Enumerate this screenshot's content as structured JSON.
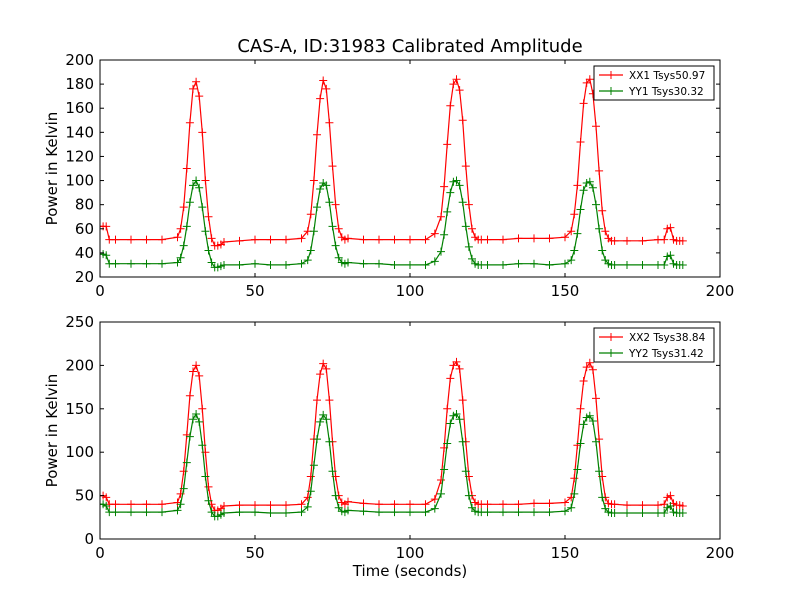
{
  "figure": {
    "title": "CAS-A, ID:31983 Calibrated Amplitude"
  },
  "chart_data": [
    {
      "type": "line",
      "title": "CAS-A, ID:31983 Calibrated Amplitude",
      "xlabel": "",
      "ylabel": "Power in Kelvin",
      "xlim": [
        0,
        200
      ],
      "ylim": [
        20,
        200
      ],
      "xticks": [
        "0",
        "50",
        "100",
        "150",
        "200"
      ],
      "yticks": [
        "20",
        "40",
        "60",
        "80",
        "100",
        "120",
        "140",
        "160",
        "180",
        "200"
      ],
      "legend_position": "top-right",
      "grid": false,
      "series": [
        {
          "name": "XX1 Tsys50.97",
          "color": "#ff0000",
          "marker": "plus",
          "x": [
            0,
            1,
            2,
            3,
            5,
            10,
            15,
            20,
            25,
            26,
            27,
            28,
            29,
            30,
            31,
            32,
            33,
            34,
            35,
            36,
            37,
            38,
            39,
            40,
            45,
            50,
            55,
            60,
            65,
            67,
            68,
            69,
            70,
            71,
            72,
            73,
            74,
            75,
            76,
            77,
            78,
            79,
            80,
            85,
            90,
            95,
            100,
            105,
            108,
            110,
            111,
            112,
            113,
            114,
            115,
            116,
            117,
            118,
            119,
            120,
            121,
            122,
            123,
            125,
            130,
            135,
            140,
            145,
            150,
            152,
            153,
            154,
            155,
            156,
            157,
            158,
            159,
            160,
            161,
            162,
            163,
            164,
            165,
            166,
            170,
            175,
            180,
            182,
            183,
            184,
            185,
            186,
            187,
            188
          ],
          "y": [
            62,
            62,
            62,
            51,
            51,
            51,
            51,
            51,
            53,
            60,
            78,
            110,
            148,
            176,
            182,
            170,
            140,
            100,
            70,
            52,
            46,
            46,
            47,
            49,
            50,
            51,
            51,
            51,
            52,
            58,
            72,
            100,
            138,
            168,
            183,
            176,
            148,
            112,
            80,
            60,
            53,
            51,
            52,
            51,
            51,
            51,
            51,
            51,
            56,
            70,
            95,
            130,
            162,
            180,
            184,
            175,
            150,
            112,
            80,
            60,
            53,
            51,
            51,
            51,
            51,
            52,
            52,
            52,
            53,
            58,
            72,
            96,
            132,
            164,
            181,
            184,
            172,
            145,
            108,
            75,
            58,
            52,
            50,
            50,
            50,
            50,
            51,
            51,
            60,
            61,
            51,
            50,
            50,
            50
          ]
        },
        {
          "name": "YY1 Tsys30.32",
          "color": "#008000",
          "marker": "plus",
          "x": [
            0,
            1,
            2,
            3,
            5,
            10,
            15,
            20,
            25,
            26,
            27,
            28,
            29,
            30,
            31,
            32,
            33,
            34,
            35,
            36,
            37,
            38,
            39,
            40,
            45,
            50,
            55,
            60,
            65,
            67,
            68,
            69,
            70,
            71,
            72,
            73,
            74,
            75,
            76,
            77,
            78,
            79,
            80,
            85,
            90,
            95,
            100,
            105,
            108,
            110,
            111,
            112,
            113,
            114,
            115,
            116,
            117,
            118,
            119,
            120,
            121,
            122,
            123,
            125,
            130,
            135,
            140,
            145,
            150,
            152,
            153,
            154,
            155,
            156,
            157,
            158,
            159,
            160,
            161,
            162,
            163,
            164,
            165,
            166,
            170,
            175,
            180,
            182,
            183,
            184,
            185,
            186,
            187,
            188
          ],
          "y": [
            39,
            39,
            38,
            31,
            31,
            31,
            31,
            31,
            32,
            36,
            46,
            62,
            82,
            96,
            100,
            94,
            78,
            58,
            42,
            32,
            28,
            28,
            29,
            30,
            30,
            31,
            30,
            30,
            31,
            34,
            42,
            58,
            78,
            93,
            98,
            96,
            82,
            62,
            46,
            36,
            32,
            31,
            32,
            31,
            31,
            30,
            30,
            30,
            33,
            41,
            55,
            74,
            90,
            99,
            100,
            96,
            82,
            62,
            45,
            35,
            31,
            30,
            30,
            30,
            30,
            31,
            31,
            30,
            31,
            34,
            42,
            56,
            76,
            92,
            98,
            99,
            94,
            80,
            60,
            42,
            34,
            31,
            30,
            30,
            30,
            30,
            30,
            30,
            37,
            38,
            31,
            30,
            30,
            30
          ]
        }
      ]
    },
    {
      "type": "line",
      "title": "",
      "xlabel": "Time (seconds)",
      "ylabel": "Power in Kelvin",
      "xlim": [
        0,
        200
      ],
      "ylim": [
        0,
        250
      ],
      "xticks": [
        "0",
        "50",
        "100",
        "150",
        "200"
      ],
      "yticks": [
        "0",
        "50",
        "100",
        "150",
        "200",
        "250"
      ],
      "legend_position": "top-right",
      "grid": false,
      "series": [
        {
          "name": "XX2 Tsys38.84",
          "color": "#ff0000",
          "marker": "plus",
          "x": [
            0,
            1,
            2,
            3,
            5,
            10,
            15,
            20,
            25,
            26,
            27,
            28,
            29,
            30,
            31,
            32,
            33,
            34,
            35,
            36,
            37,
            38,
            39,
            40,
            45,
            50,
            55,
            60,
            65,
            67,
            68,
            69,
            70,
            71,
            72,
            73,
            74,
            75,
            76,
            77,
            78,
            79,
            80,
            85,
            90,
            95,
            100,
            105,
            108,
            110,
            111,
            112,
            113,
            114,
            115,
            116,
            117,
            118,
            119,
            120,
            121,
            122,
            123,
            125,
            130,
            135,
            140,
            145,
            150,
            152,
            153,
            154,
            155,
            156,
            157,
            158,
            159,
            160,
            161,
            162,
            163,
            164,
            165,
            166,
            170,
            175,
            180,
            182,
            183,
            184,
            185,
            186,
            187,
            188
          ],
          "y": [
            50,
            50,
            48,
            40,
            40,
            40,
            40,
            40,
            42,
            52,
            78,
            120,
            165,
            193,
            200,
            188,
            150,
            100,
            60,
            40,
            33,
            33,
            35,
            38,
            39,
            39,
            39,
            39,
            40,
            48,
            72,
            115,
            160,
            190,
            202,
            196,
            160,
            112,
            72,
            50,
            42,
            40,
            43,
            41,
            40,
            40,
            40,
            40,
            46,
            68,
            105,
            150,
            185,
            200,
            204,
            196,
            160,
            112,
            72,
            50,
            42,
            40,
            40,
            40,
            40,
            40,
            41,
            41,
            42,
            48,
            70,
            108,
            150,
            182,
            198,
            203,
            195,
            162,
            115,
            72,
            48,
            41,
            40,
            40,
            39,
            39,
            39,
            40,
            48,
            50,
            41,
            39,
            39,
            38
          ]
        },
        {
          "name": "YY2 Tsys31.42",
          "color": "#008000",
          "marker": "plus",
          "x": [
            0,
            1,
            2,
            3,
            5,
            10,
            15,
            20,
            25,
            26,
            27,
            28,
            29,
            30,
            31,
            32,
            33,
            34,
            35,
            36,
            37,
            38,
            39,
            40,
            45,
            50,
            55,
            60,
            65,
            67,
            68,
            69,
            70,
            71,
            72,
            73,
            74,
            75,
            76,
            77,
            78,
            79,
            80,
            85,
            90,
            95,
            100,
            105,
            108,
            110,
            111,
            112,
            113,
            114,
            115,
            116,
            117,
            118,
            119,
            120,
            121,
            122,
            123,
            125,
            130,
            135,
            140,
            145,
            150,
            152,
            153,
            154,
            155,
            156,
            157,
            158,
            159,
            160,
            161,
            162,
            163,
            164,
            165,
            166,
            170,
            175,
            180,
            182,
            183,
            184,
            185,
            186,
            187,
            188
          ],
          "y": [
            40,
            40,
            38,
            31,
            31,
            31,
            31,
            31,
            33,
            40,
            58,
            88,
            118,
            138,
            144,
            135,
            108,
            72,
            44,
            31,
            26,
            26,
            28,
            30,
            31,
            31,
            30,
            30,
            31,
            37,
            55,
            85,
            115,
            135,
            143,
            138,
            112,
            78,
            50,
            36,
            32,
            31,
            33,
            32,
            31,
            31,
            31,
            31,
            35,
            52,
            80,
            110,
            133,
            142,
            144,
            138,
            112,
            78,
            50,
            36,
            32,
            31,
            31,
            31,
            31,
            31,
            31,
            31,
            32,
            36,
            52,
            80,
            110,
            132,
            140,
            142,
            136,
            112,
            78,
            48,
            35,
            31,
            30,
            30,
            30,
            30,
            30,
            30,
            36,
            38,
            31,
            30,
            30,
            30
          ]
        }
      ]
    }
  ]
}
